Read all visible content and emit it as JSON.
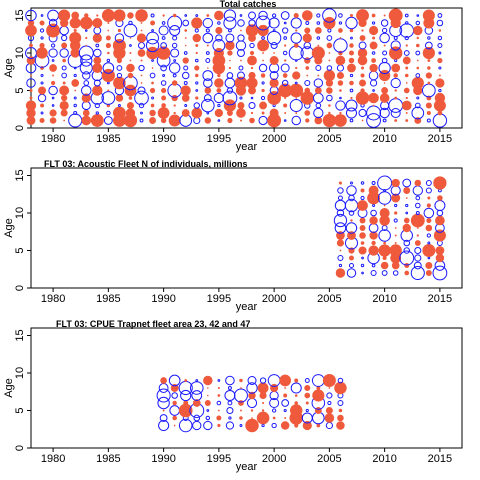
{
  "colors": {
    "positive": "#f05a3c",
    "negative": "#1a1aff",
    "axis": "#000000"
  },
  "chart_data": [
    {
      "type": "scatter",
      "subtype": "bubble",
      "title": "Total catches",
      "xlabel": "year",
      "ylabel": "Age",
      "xlim": [
        1978,
        2017
      ],
      "ylim": [
        0,
        16
      ],
      "xticks": [
        "1980",
        "1985",
        "1990",
        "1995",
        "2000",
        "2005",
        "2010",
        "2015"
      ],
      "yticks": [
        "0",
        "5",
        "10",
        "15"
      ],
      "grid": false,
      "age_range": [
        1,
        15
      ],
      "year_range": [
        1978,
        2015
      ]
    },
    {
      "type": "scatter",
      "subtype": "bubble",
      "title": "FLT 03: Acoustic Fleet   N of individuals, millions",
      "xlabel": "year",
      "ylabel": "Age",
      "xlim": [
        1978,
        2017
      ],
      "ylim": [
        0,
        16
      ],
      "xticks": [
        "1980",
        "1985",
        "1990",
        "1995",
        "2000",
        "2005",
        "2010",
        "2015"
      ],
      "yticks": [
        "0",
        "5",
        "10",
        "15"
      ],
      "grid": false,
      "age_range": [
        2,
        14
      ],
      "year_range": [
        2006,
        2015
      ]
    },
    {
      "type": "scatter",
      "subtype": "bubble",
      "title": "FLT 03: CPUE Trapnet fleet area 23, 42 and 47",
      "xlabel": "year",
      "ylabel": "Age",
      "xlim": [
        1978,
        2017
      ],
      "ylim": [
        0,
        16
      ],
      "xticks": [
        "1980",
        "1985",
        "1990",
        "1995",
        "2000",
        "2005",
        "2010",
        "2015"
      ],
      "yticks": [
        "0",
        "5",
        "10",
        "15"
      ],
      "grid": false,
      "age_range": [
        3,
        9
      ],
      "year_range": [
        1990,
        2006
      ]
    }
  ]
}
